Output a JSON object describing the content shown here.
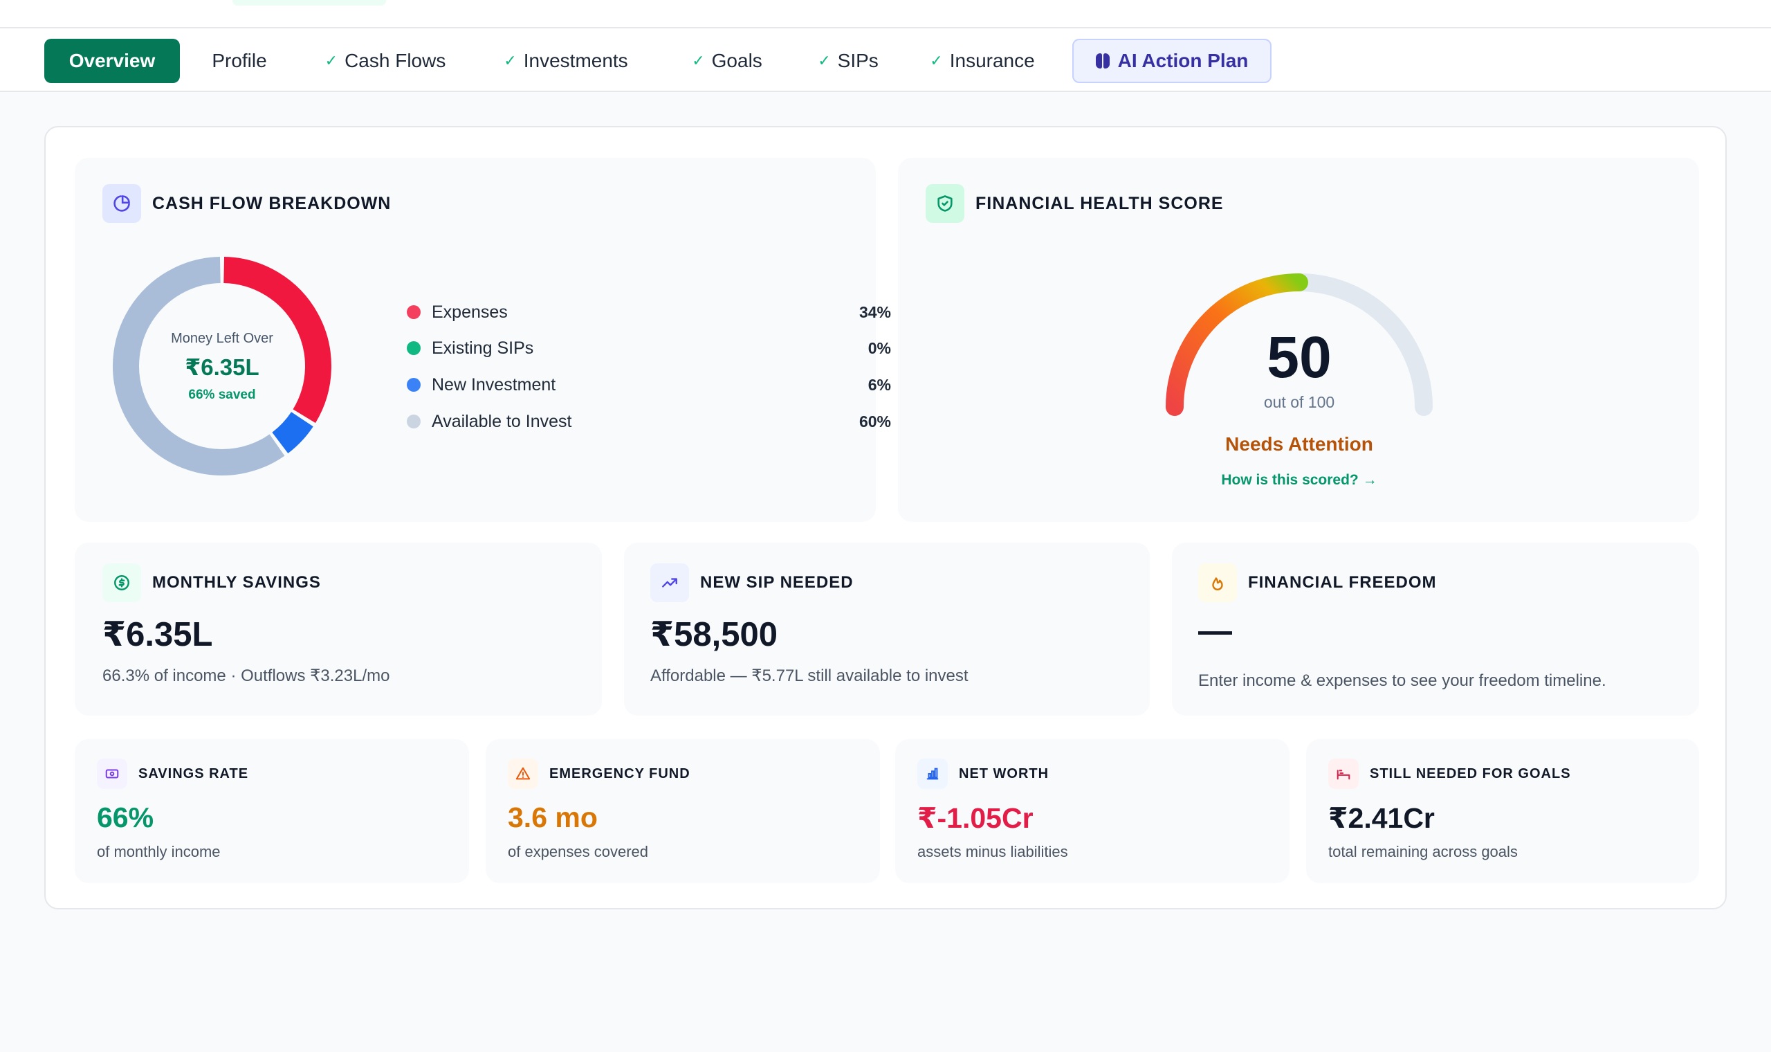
{
  "tabs": [
    {
      "label": "Overview",
      "active": true,
      "checked": false
    },
    {
      "label": "Profile",
      "active": false,
      "checked": false
    },
    {
      "label": "Cash Flows",
      "active": false,
      "checked": true
    },
    {
      "label": "Investments",
      "active": false,
      "checked": true
    },
    {
      "label": "Goals",
      "active": false,
      "checked": true
    },
    {
      "label": "SIPs",
      "active": false,
      "checked": true
    },
    {
      "label": "Insurance",
      "active": false,
      "checked": true
    },
    {
      "label": "AI Action Plan",
      "active": false,
      "checked": false
    }
  ],
  "cash_flow": {
    "title": "CASH FLOW BREAKDOWN",
    "center_label": "Money Left Over",
    "center_value": "₹6.35L",
    "center_sub": "66% saved",
    "legend": [
      {
        "label": "Expenses",
        "pct": "34%",
        "color": "#f43f5e"
      },
      {
        "label": "Existing SIPs",
        "pct": "0%",
        "color": "#10b981"
      },
      {
        "label": "New Investment",
        "pct": "6%",
        "color": "#3b82f6"
      },
      {
        "label": "Available to Invest",
        "pct": "60%",
        "color": "#cbd5e1"
      }
    ]
  },
  "chart_data": {
    "type": "pie",
    "categories": [
      "Expenses",
      "Existing SIPs",
      "New Investment",
      "Available to Invest"
    ],
    "values": [
      34,
      0,
      6,
      60
    ],
    "colors": [
      "#f0183e",
      "#10b981",
      "#1d6ff2",
      "#a9bdd8"
    ]
  },
  "health": {
    "title": "FINANCIAL HEALTH SCORE",
    "score": "50",
    "score_value": 50,
    "out_of": "out of 100",
    "status": "Needs Attention",
    "link": "How is this scored? →"
  },
  "monthly_savings": {
    "title": "MONTHLY SAVINGS",
    "value": "₹6.35L",
    "sub": "66.3% of income · Outflows ₹3.23L/mo"
  },
  "new_sip": {
    "title": "NEW SIP NEEDED",
    "value": "₹58,500",
    "sub": "Affordable — ₹5.77L still available to invest"
  },
  "freedom": {
    "title": "FINANCIAL FREEDOM",
    "value": "—",
    "sub": "Enter income & expenses to see your freedom timeline."
  },
  "savings_rate": {
    "title": "SAVINGS RATE",
    "value": "66%",
    "sub": "of monthly income",
    "color": "#059669"
  },
  "emergency_fund": {
    "title": "EMERGENCY FUND",
    "value": "3.6 mo",
    "sub": "of expenses covered",
    "color": "#d97706"
  },
  "net_worth": {
    "title": "NET WORTH",
    "value": "₹-1.05Cr",
    "sub": "assets minus liabilities",
    "color": "#e11d48"
  },
  "goals_needed": {
    "title": "STILL NEEDED FOR GOALS",
    "value": "₹2.41Cr",
    "sub": "total remaining across goals",
    "color": "#111827"
  }
}
